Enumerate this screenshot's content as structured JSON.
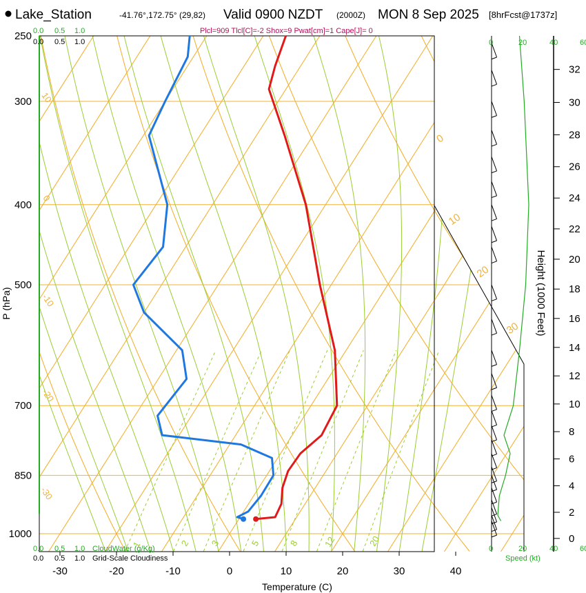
{
  "header": {
    "station": "Lake_Station",
    "coords": "-41.76°,172.75° (29,82)",
    "valid": "Valid 0900 NZDT",
    "utc": "(2000Z)",
    "date": "MON 8 Sep 2025",
    "forecast": "[8hrFcst@1737z]",
    "params": "Plcl=909 Tlcl[C]=-2 Shox=9 Pwat[cm]=1 Cape[J]= 0"
  },
  "colors": {
    "temp": "#e01a1a",
    "dewpoint": "#1f78e0",
    "isotherm": "#f2b233",
    "dry_adiabat": "#9acd32",
    "moist_adiabat": "#9acd32",
    "mixing_ratio": "#9acd32",
    "cloud": "#22aa22",
    "params": "#b0105a",
    "wind": "#000000"
  },
  "chart_data": {
    "type": "skew-t",
    "title": "Lake_Station Valid 0900 NZDT MON 8 Sep 2025",
    "xlabel": "Temperature (C)",
    "ylabel": "P (hPa)",
    "y2label": "Height (1000 Feet)",
    "x_ticks": [
      "-30",
      "-20",
      "-10",
      "0",
      "10",
      "20",
      "30",
      "40"
    ],
    "p_ticks": [
      "250",
      "300",
      "400",
      "500",
      "700",
      "850",
      "1000"
    ],
    "p_values": [
      250,
      300,
      400,
      500,
      700,
      850,
      1000
    ],
    "height_ticks": [
      "0",
      "2",
      "4",
      "6",
      "8",
      "10",
      "12",
      "14",
      "16",
      "18",
      "20",
      "22",
      "24",
      "26",
      "28",
      "30",
      "32"
    ],
    "isotherm_labels": [
      "0",
      "10",
      "20",
      "30"
    ],
    "low_isotherm_labels": [
      "10",
      "0",
      "-10",
      "-20",
      "-30"
    ],
    "mixing_ratio_labels": [
      "1",
      "2",
      "3",
      "5",
      "8",
      "12",
      "20"
    ],
    "cloud_scale": {
      "water_ticks": [
        "0.0",
        "0.5",
        "1.0"
      ],
      "water_label": "CloudWater (g/Kg)",
      "cloudiness_ticks": [
        "0.0",
        "0.5",
        "1.0"
      ],
      "cloudiness_label": "Grid-Scale Cloudiness"
    },
    "wind_speed_axis": {
      "ticks": [
        "0",
        "20",
        "40",
        "60"
      ],
      "label": "Speed (kt)"
    },
    "temperature": [
      {
        "p": 960,
        "t": 3
      },
      {
        "p": 955,
        "t": 6.2
      },
      {
        "p": 920,
        "t": 5.8
      },
      {
        "p": 880,
        "t": 4.2
      },
      {
        "p": 840,
        "t": 3.3
      },
      {
        "p": 800,
        "t": 3.5
      },
      {
        "p": 760,
        "t": 5.2
      },
      {
        "p": 700,
        "t": 4.6
      },
      {
        "p": 600,
        "t": -2
      },
      {
        "p": 500,
        "t": -12
      },
      {
        "p": 400,
        "t": -23.5
      },
      {
        "p": 330,
        "t": -35
      },
      {
        "p": 290,
        "t": -43
      },
      {
        "p": 272,
        "t": -44.5
      },
      {
        "p": 250,
        "t": -46
      }
    ],
    "dewpoint": [
      {
        "p": 960,
        "t": 0.8
      },
      {
        "p": 955,
        "t": -0.5
      },
      {
        "p": 940,
        "t": 0.8
      },
      {
        "p": 900,
        "t": 1.3
      },
      {
        "p": 850,
        "t": 1.2
      },
      {
        "p": 810,
        "t": -1
      },
      {
        "p": 780,
        "t": -8
      },
      {
        "p": 760,
        "t": -23
      },
      {
        "p": 720,
        "t": -26
      },
      {
        "p": 650,
        "t": -25
      },
      {
        "p": 600,
        "t": -29
      },
      {
        "p": 540,
        "t": -40
      },
      {
        "p": 500,
        "t": -45
      },
      {
        "p": 450,
        "t": -44
      },
      {
        "p": 400,
        "t": -48
      },
      {
        "p": 330,
        "t": -59
      },
      {
        "p": 300,
        "t": -60
      },
      {
        "p": 265,
        "t": -61
      },
      {
        "p": 250,
        "t": -63
      }
    ],
    "winds": [
      {
        "p": 255,
        "dir": 290,
        "spd": 15
      },
      {
        "p": 275,
        "dir": 290,
        "spd": 15
      },
      {
        "p": 300,
        "dir": 290,
        "spd": 15
      },
      {
        "p": 325,
        "dir": 290,
        "spd": 15
      },
      {
        "p": 350,
        "dir": 290,
        "spd": 15
      },
      {
        "p": 375,
        "dir": 290,
        "spd": 15
      },
      {
        "p": 400,
        "dir": 290,
        "spd": 15
      },
      {
        "p": 425,
        "dir": 290,
        "spd": 15
      },
      {
        "p": 450,
        "dir": 290,
        "spd": 15
      },
      {
        "p": 500,
        "dir": 290,
        "spd": 15
      },
      {
        "p": 550,
        "dir": 290,
        "spd": 15
      },
      {
        "p": 600,
        "dir": 290,
        "spd": 15
      },
      {
        "p": 640,
        "dir": 290,
        "spd": 15
      },
      {
        "p": 680,
        "dir": 290,
        "spd": 15
      },
      {
        "p": 710,
        "dir": 290,
        "spd": 15
      },
      {
        "p": 740,
        "dir": 290,
        "spd": 15
      },
      {
        "p": 770,
        "dir": 290,
        "spd": 15
      },
      {
        "p": 800,
        "dir": 290,
        "spd": 15
      },
      {
        "p": 830,
        "dir": 290,
        "spd": 15
      },
      {
        "p": 850,
        "dir": 290,
        "spd": 15
      },
      {
        "p": 880,
        "dir": 290,
        "spd": 15
      },
      {
        "p": 910,
        "dir": 290,
        "spd": 15
      },
      {
        "p": 930,
        "dir": 290,
        "spd": 15
      },
      {
        "p": 950,
        "dir": 290,
        "spd": 15
      },
      {
        "p": 965,
        "dir": 290,
        "spd": 15
      }
    ],
    "speed_profile": [
      {
        "p": 250,
        "spd": 18
      },
      {
        "p": 300,
        "spd": 21
      },
      {
        "p": 400,
        "spd": 24
      },
      {
        "p": 500,
        "spd": 22
      },
      {
        "p": 600,
        "spd": 18
      },
      {
        "p": 700,
        "spd": 14
      },
      {
        "p": 760,
        "spd": 8
      },
      {
        "p": 800,
        "spd": 12
      },
      {
        "p": 850,
        "spd": 9
      },
      {
        "p": 900,
        "spd": 5
      },
      {
        "p": 950,
        "spd": 4
      },
      {
        "p": 965,
        "spd": 6
      }
    ]
  }
}
